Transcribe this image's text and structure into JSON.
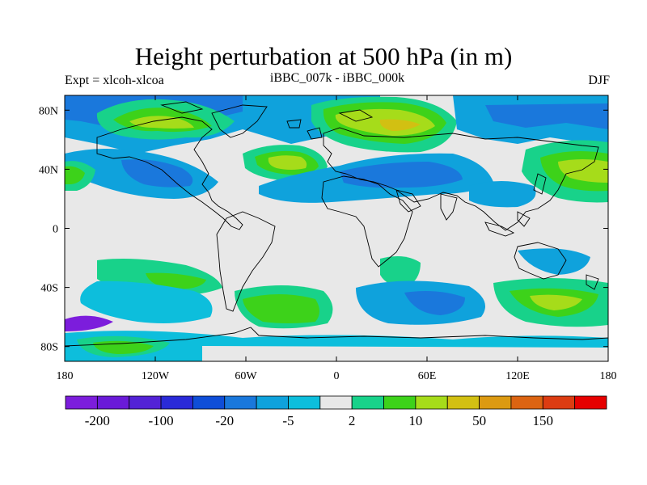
{
  "title": "Height perturbation at 500 hPa (in m)",
  "subtitle_left": "Expt = xlcoh-xlcoa",
  "subtitle_center": "iBBC_007k - iBBC_000k",
  "subtitle_right": "DJF",
  "x_ticks": [
    {
      "label": "180",
      "lon": -180
    },
    {
      "label": "120W",
      "lon": -120
    },
    {
      "label": "60W",
      "lon": -60
    },
    {
      "label": "0",
      "lon": 0
    },
    {
      "label": "60E",
      "lon": 60
    },
    {
      "label": "120E",
      "lon": 120
    },
    {
      "label": "180",
      "lon": 180
    }
  ],
  "y_ticks": [
    {
      "label": "80N",
      "lat": 80
    },
    {
      "label": "40N",
      "lat": 40
    },
    {
      "label": "0",
      "lat": 0
    },
    {
      "label": "40S",
      "lat": -40
    },
    {
      "label": "80S",
      "lat": -80
    }
  ],
  "colorbar": {
    "colors": [
      "#7c1ddc",
      "#6a1ad8",
      "#5322d6",
      "#2a2ad8",
      "#0f4ed8",
      "#1a78dc",
      "#0fa2dc",
      "#0dbedc",
      "#e8e8e8",
      "#18d28a",
      "#3dd21a",
      "#a6dc1a",
      "#d2c012",
      "#dc9a12",
      "#dc6412",
      "#dc3c12",
      "#e60000"
    ],
    "labels": [
      {
        "text": "-200",
        "index": 1
      },
      {
        "text": "-100",
        "index": 3
      },
      {
        "text": "-20",
        "index": 5
      },
      {
        "text": "-5",
        "index": 7
      },
      {
        "text": "2",
        "index": 9
      },
      {
        "text": "10",
        "index": 11
      },
      {
        "text": "50",
        "index": 13
      },
      {
        "text": "150",
        "index": 15
      }
    ]
  },
  "colors": {
    "ocean_neutral": "#e8e8e8",
    "neg_light": "#0dbedc",
    "neg_mid": "#0fa2dc",
    "neg_dark": "#1a78dc",
    "pos_light": "#18d28a",
    "pos_mid": "#3dd21a",
    "pos_strong": "#a6dc1a",
    "pos_peak": "#d2c012"
  }
}
